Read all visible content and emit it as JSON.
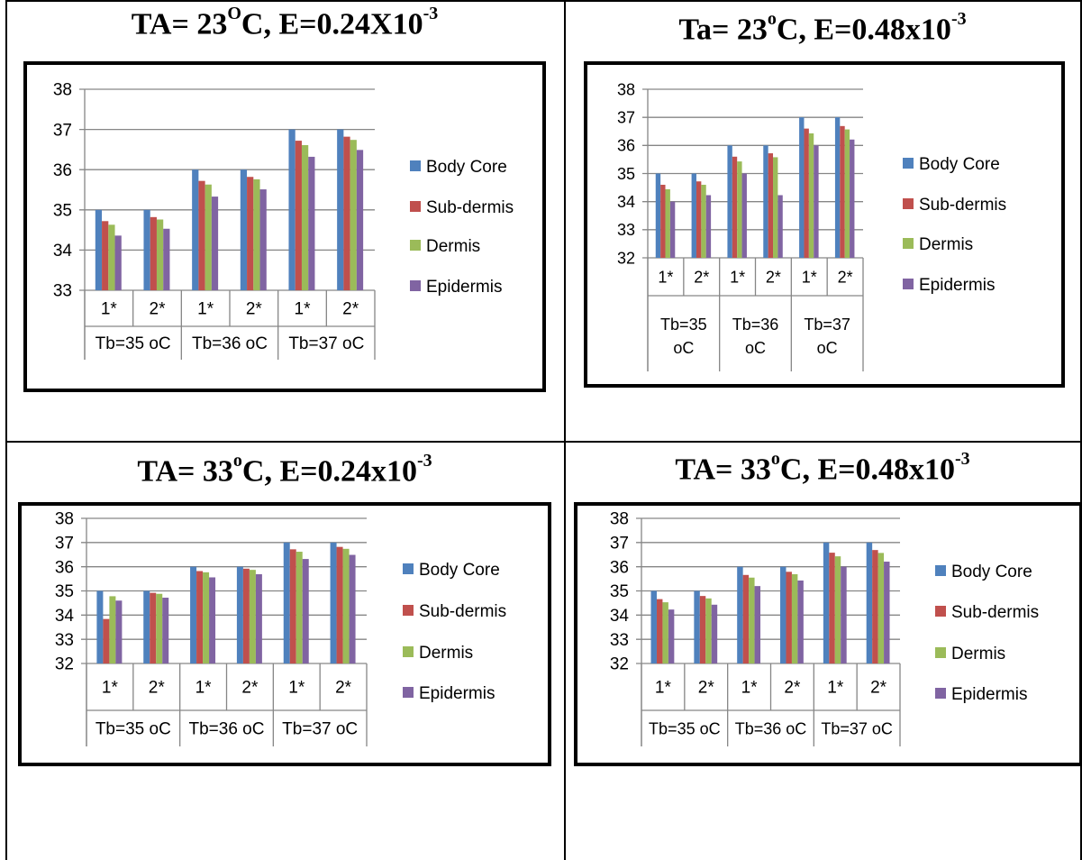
{
  "colors": {
    "body_core": "#4f81bd",
    "sub_dermis": "#c0504d",
    "dermis": "#9bbb59",
    "epidermis": "#8064a2",
    "gridline": "#868686",
    "frame": "#000000"
  },
  "chart_data": [
    {
      "type": "bar",
      "title_parts": {
        "prefix": "TA= 23",
        "sup1": "O",
        "middle": "C, E=0.24X10",
        "sup2": "-3"
      },
      "categories": [
        "1*",
        "2*",
        "1*",
        "2*",
        "1*",
        "2*"
      ],
      "groups": [
        "Tb=35 oC",
        "Tb=36 oC",
        "Tb=37 oC"
      ],
      "series": [
        {
          "name": "Body Core",
          "values": [
            35.0,
            35.0,
            36.0,
            36.0,
            37.0,
            37.0
          ]
        },
        {
          "name": "Sub-dermis",
          "values": [
            34.72,
            34.82,
            35.72,
            35.82,
            36.72,
            36.82
          ]
        },
        {
          "name": "Dermis",
          "values": [
            34.63,
            34.76,
            35.63,
            35.76,
            36.61,
            36.74
          ]
        },
        {
          "name": "Epidermis",
          "values": [
            34.36,
            34.53,
            35.33,
            35.51,
            36.32,
            36.49
          ]
        }
      ],
      "yticks": [
        33,
        34,
        35,
        36,
        37,
        38
      ],
      "ylim": [
        33,
        38
      ],
      "grid": true,
      "legend": "right"
    },
    {
      "type": "bar",
      "title_parts": {
        "prefix": "Ta= 23",
        "sup1": "o",
        "middle": "C, E=0.48x10",
        "sup2": "-3"
      },
      "categories": [
        "1*",
        "2*",
        "1*",
        "2*",
        "1*",
        "2*"
      ],
      "groups": [
        "Tb=35 oC",
        "Tb=36 oC",
        "Tb=37 oC"
      ],
      "series": [
        {
          "name": "Body Core",
          "values": [
            35.0,
            35.0,
            36.0,
            36.0,
            37.0,
            37.0
          ]
        },
        {
          "name": "Sub-dermis",
          "values": [
            34.6,
            34.72,
            35.6,
            35.72,
            36.6,
            36.69
          ]
        },
        {
          "name": "Dermis",
          "values": [
            34.44,
            34.6,
            35.43,
            35.58,
            36.43,
            36.57
          ]
        },
        {
          "name": "Epidermis",
          "values": [
            34.0,
            34.23,
            35.0,
            34.23,
            36.0,
            36.21
          ]
        }
      ],
      "yticks": [
        32,
        33,
        34,
        35,
        36,
        37,
        38
      ],
      "ylim": [
        32,
        38
      ],
      "grid": true,
      "legend": "right"
    },
    {
      "type": "bar",
      "title_parts": {
        "prefix": "TA= 33",
        "sup1": "o",
        "middle": "C, E=0.24x10",
        "sup2": "-3"
      },
      "categories": [
        "1*",
        "2*",
        "1*",
        "2*",
        "1*",
        "2*"
      ],
      "groups": [
        "Tb=35 oC",
        "Tb=36 oC",
        "Tb=37 oC"
      ],
      "series": [
        {
          "name": "Body Core",
          "values": [
            35.0,
            35.0,
            36.0,
            36.0,
            37.0,
            37.0
          ]
        },
        {
          "name": "Sub-dermis",
          "values": [
            33.84,
            34.92,
            35.82,
            35.92,
            36.72,
            36.82
          ]
        },
        {
          "name": "Dermis",
          "values": [
            34.78,
            34.88,
            35.77,
            35.87,
            36.62,
            36.74
          ]
        },
        {
          "name": "Epidermis",
          "values": [
            34.6,
            34.72,
            35.56,
            35.69,
            36.32,
            36.49
          ]
        }
      ],
      "yticks": [
        32,
        33,
        34,
        35,
        36,
        37,
        38
      ],
      "ylim": [
        32,
        38
      ],
      "grid": true,
      "legend": "right"
    },
    {
      "type": "bar",
      "title_parts": {
        "prefix": "TA= 33",
        "sup1": "o",
        "middle": "C, E=0.48x10",
        "sup2": "-3"
      },
      "categories": [
        "1*",
        "2*",
        "1*",
        "2*",
        "1*",
        "2*"
      ],
      "groups": [
        "Tb=35 oC",
        "Tb=36 oC",
        "Tb=37 oC"
      ],
      "series": [
        {
          "name": "Body Core",
          "values": [
            35.0,
            35.0,
            36.0,
            36.0,
            37.0,
            37.0
          ]
        },
        {
          "name": "Sub-dermis",
          "values": [
            34.66,
            34.79,
            35.66,
            35.79,
            36.58,
            36.69
          ]
        },
        {
          "name": "Dermis",
          "values": [
            34.53,
            34.69,
            35.55,
            35.69,
            36.43,
            36.57
          ]
        },
        {
          "name": "Epidermis",
          "values": [
            34.23,
            34.43,
            35.2,
            35.43,
            36.0,
            36.21
          ]
        }
      ],
      "yticks": [
        32,
        33,
        34,
        35,
        36,
        37,
        38
      ],
      "ylim": [
        32,
        38
      ],
      "grid": true,
      "legend": "right"
    }
  ]
}
